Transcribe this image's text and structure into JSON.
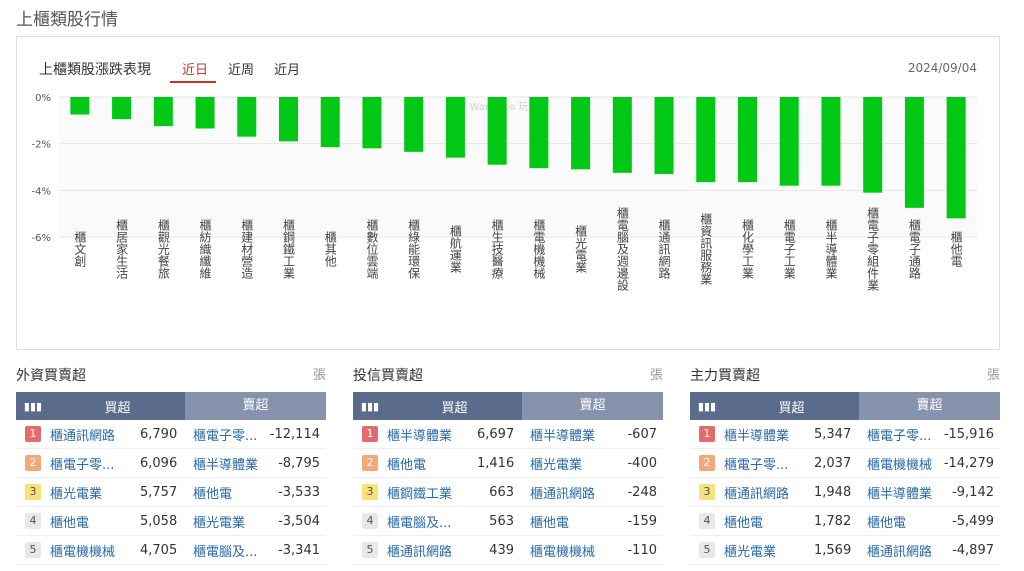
{
  "page_title": "上櫃類股行情",
  "chart_header": {
    "title": "上櫃類股漲跌表現",
    "tabs": [
      "近日",
      "近周",
      "近月"
    ],
    "active_tab": "近日",
    "date": "2024/09/04",
    "watermark": "WantGoo 玩股網"
  },
  "chart_data": {
    "type": "bar",
    "title": "上櫃類股漲跌表現",
    "ylabel": "",
    "xlabel": "",
    "ylim": [
      -6,
      0
    ],
    "yticks": [
      "0%",
      "-2%",
      "-4%",
      "-6%"
    ],
    "categories": [
      "櫃文創",
      "櫃居家生活",
      "櫃觀光餐旅",
      "櫃紡織纖維",
      "櫃建材營造",
      "櫃鋼鐵工業",
      "櫃其他",
      "櫃數位雲端",
      "櫃綠能環保",
      "櫃航運業",
      "櫃生技醫療",
      "櫃電機機械",
      "櫃光電業",
      "櫃電腦及週邊設",
      "櫃通訊網路",
      "櫃資訊服務業",
      "櫃化學工業",
      "櫃電子工業",
      "櫃半導體業",
      "櫃電子零組件業",
      "櫃電子通路",
      "櫃他電"
    ],
    "values": [
      -0.75,
      -0.95,
      -1.25,
      -1.35,
      -1.7,
      -1.9,
      -2.15,
      -2.2,
      -2.35,
      -2.6,
      -2.9,
      -3.05,
      -3.1,
      -3.25,
      -3.3,
      -3.65,
      -3.65,
      -3.8,
      -3.8,
      -4.1,
      -4.75,
      -5.2
    ],
    "bar_color": "#00c814",
    "grid": true
  },
  "panels": [
    {
      "title": "外資買賣超",
      "unit": "張",
      "head_buy": "買超",
      "head_sell": "賣超",
      "rows": [
        {
          "rank": "1",
          "buy_name": "櫃通訊網路",
          "buy_val": "6,790",
          "sell_name": "櫃電子零...",
          "sell_val": "-12,114"
        },
        {
          "rank": "2",
          "buy_name": "櫃電子零...",
          "buy_val": "6,096",
          "sell_name": "櫃半導體業",
          "sell_val": "-8,795"
        },
        {
          "rank": "3",
          "buy_name": "櫃光電業",
          "buy_val": "5,757",
          "sell_name": "櫃他電",
          "sell_val": "-3,533"
        },
        {
          "rank": "4",
          "buy_name": "櫃他電",
          "buy_val": "5,058",
          "sell_name": "櫃光電業",
          "sell_val": "-3,504"
        },
        {
          "rank": "5",
          "buy_name": "櫃電機機械",
          "buy_val": "4,705",
          "sell_name": "櫃電腦及...",
          "sell_val": "-3,341"
        }
      ]
    },
    {
      "title": "投信買賣超",
      "unit": "張",
      "head_buy": "買超",
      "head_sell": "賣超",
      "rows": [
        {
          "rank": "1",
          "buy_name": "櫃半導體業",
          "buy_val": "6,697",
          "sell_name": "櫃半導體業",
          "sell_val": "-607"
        },
        {
          "rank": "2",
          "buy_name": "櫃他電",
          "buy_val": "1,416",
          "sell_name": "櫃光電業",
          "sell_val": "-400"
        },
        {
          "rank": "3",
          "buy_name": "櫃鋼鐵工業",
          "buy_val": "663",
          "sell_name": "櫃通訊網路",
          "sell_val": "-248"
        },
        {
          "rank": "4",
          "buy_name": "櫃電腦及...",
          "buy_val": "563",
          "sell_name": "櫃他電",
          "sell_val": "-159"
        },
        {
          "rank": "5",
          "buy_name": "櫃通訊網路",
          "buy_val": "439",
          "sell_name": "櫃電機機械",
          "sell_val": "-110"
        }
      ]
    },
    {
      "title": "主力買賣超",
      "unit": "張",
      "head_buy": "買超",
      "head_sell": "賣超",
      "rows": [
        {
          "rank": "1",
          "buy_name": "櫃半導體業",
          "buy_val": "5,347",
          "sell_name": "櫃電子零...",
          "sell_val": "-15,916"
        },
        {
          "rank": "2",
          "buy_name": "櫃電子零...",
          "buy_val": "2,037",
          "sell_name": "櫃電機機械",
          "sell_val": "-14,279"
        },
        {
          "rank": "3",
          "buy_name": "櫃通訊網路",
          "buy_val": "1,948",
          "sell_name": "櫃半導體業",
          "sell_val": "-9,142"
        },
        {
          "rank": "4",
          "buy_name": "櫃他電",
          "buy_val": "1,782",
          "sell_name": "櫃他電",
          "sell_val": "-5,499"
        },
        {
          "rank": "5",
          "buy_name": "櫃光電業",
          "buy_val": "1,569",
          "sell_name": "櫃通訊網路",
          "sell_val": "-4,897"
        }
      ]
    }
  ],
  "icons": {
    "table_head": "bar-chart-icon"
  }
}
